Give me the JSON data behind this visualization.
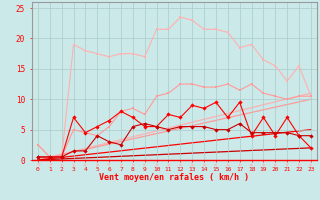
{
  "x": [
    0,
    1,
    2,
    3,
    4,
    5,
    6,
    7,
    8,
    9,
    10,
    11,
    12,
    13,
    14,
    15,
    16,
    17,
    18,
    19,
    20,
    21,
    22,
    23
  ],
  "line_lpink": [
    2.5,
    0.5,
    0.5,
    19.0,
    18.0,
    17.5,
    17.0,
    17.5,
    17.5,
    17.0,
    21.5,
    21.5,
    23.5,
    23.0,
    21.5,
    21.5,
    21.0,
    18.5,
    19.0,
    16.5,
    15.5,
    13.0,
    15.5,
    10.5
  ],
  "line_pink2": [
    2.5,
    0.5,
    0.5,
    5.0,
    4.5,
    4.0,
    5.5,
    8.0,
    8.5,
    7.5,
    10.5,
    11.0,
    12.5,
    12.5,
    12.0,
    12.0,
    12.5,
    11.5,
    12.5,
    11.0,
    10.5,
    10.0,
    10.5,
    10.5
  ],
  "line_red1": [
    0.5,
    0.5,
    0.5,
    7.0,
    4.5,
    5.5,
    6.5,
    8.0,
    7.0,
    5.5,
    5.5,
    7.5,
    7.0,
    9.0,
    8.5,
    9.5,
    7.0,
    9.5,
    4.0,
    7.0,
    4.0,
    7.0,
    4.0,
    2.0
  ],
  "line_red2": [
    0.5,
    0.5,
    0.5,
    1.5,
    1.5,
    4.0,
    3.0,
    2.5,
    5.5,
    6.0,
    5.5,
    5.0,
    5.5,
    5.5,
    5.5,
    5.0,
    5.0,
    6.0,
    4.5,
    4.5,
    4.5,
    4.5,
    4.0,
    4.0
  ],
  "trend_lpink1": [
    0.0,
    0.48,
    0.96,
    1.43,
    1.91,
    2.39,
    2.87,
    3.35,
    3.83,
    4.3,
    4.78,
    5.26,
    5.74,
    6.22,
    6.7,
    7.17,
    7.65,
    8.13,
    8.61,
    9.09,
    9.57,
    10.04,
    10.52,
    11.0
  ],
  "trend_lpink2": [
    0.0,
    0.43,
    0.87,
    1.3,
    1.74,
    2.17,
    2.61,
    3.04,
    3.48,
    3.91,
    4.35,
    4.78,
    5.22,
    5.65,
    6.09,
    6.52,
    6.96,
    7.39,
    7.83,
    8.26,
    8.7,
    9.13,
    9.57,
    10.0
  ],
  "trend_red1": [
    0.0,
    0.22,
    0.43,
    0.65,
    0.87,
    1.09,
    1.3,
    1.52,
    1.74,
    1.96,
    2.17,
    2.39,
    2.61,
    2.83,
    3.04,
    3.26,
    3.48,
    3.7,
    3.91,
    4.13,
    4.35,
    4.57,
    4.78,
    5.0
  ],
  "trend_red2": [
    0.0,
    0.09,
    0.17,
    0.26,
    0.35,
    0.43,
    0.52,
    0.61,
    0.7,
    0.78,
    0.87,
    0.96,
    1.04,
    1.13,
    1.22,
    1.3,
    1.39,
    1.48,
    1.57,
    1.65,
    1.74,
    1.83,
    1.91,
    2.0
  ],
  "color_lpink": "#FFB0B0",
  "color_pink2": "#FF9999",
  "color_red1": "#FF0000",
  "color_red2": "#CC0000",
  "bg_color": "#CBE9E9",
  "grid_color": "#AACCCC",
  "xlabel": "Vent moyen/en rafales ( km/h )",
  "ylim": [
    0,
    26
  ],
  "xlim": [
    -0.5,
    23.5
  ],
  "yticks": [
    0,
    5,
    10,
    15,
    20,
    25
  ],
  "xticks": [
    0,
    1,
    2,
    3,
    4,
    5,
    6,
    7,
    8,
    9,
    10,
    11,
    12,
    13,
    14,
    15,
    16,
    17,
    18,
    19,
    20,
    21,
    22,
    23
  ]
}
